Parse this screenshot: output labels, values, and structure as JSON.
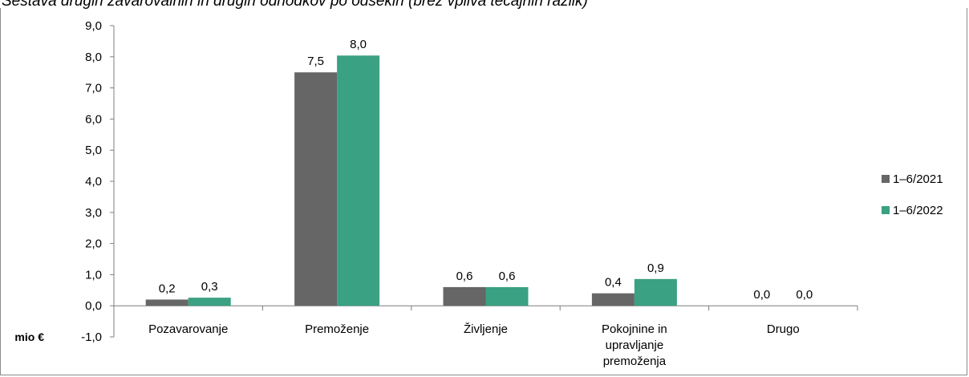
{
  "chart_data": {
    "type": "bar",
    "title": "Sestava drugih zavarovalnih in drugih odhodkov po odsekih (brez vpliva tečajnih razlik)",
    "unit_label": "mio €",
    "categories": [
      [
        "Pozavarovanje"
      ],
      [
        "Premoženje"
      ],
      [
        "Življenje"
      ],
      [
        "Pokojnine in",
        "upravljanje",
        "premoženja"
      ],
      [
        "Drugo"
      ]
    ],
    "series": [
      {
        "name": "1–6/2021",
        "color": "#666666",
        "values": [
          0.2,
          7.5,
          0.6,
          0.4,
          0.0
        ],
        "labels": [
          "0,2",
          "7,5",
          "0,6",
          "0,4",
          "0,0"
        ]
      },
      {
        "name": "1–6/2022",
        "color": "#3aa183",
        "values": [
          0.26,
          8.04,
          0.6,
          0.86,
          0.0
        ],
        "labels": [
          "0,3",
          "8,0",
          "0,6",
          "0,9",
          "0,0"
        ]
      }
    ],
    "ylim": [
      -1.0,
      9.0
    ],
    "yticks": [
      "-1,0",
      "0,0",
      "1,0",
      "2,0",
      "3,0",
      "4,0",
      "5,0",
      "6,0",
      "7,0",
      "8,0",
      "9,0"
    ],
    "legend_position": "right",
    "grid": false
  }
}
